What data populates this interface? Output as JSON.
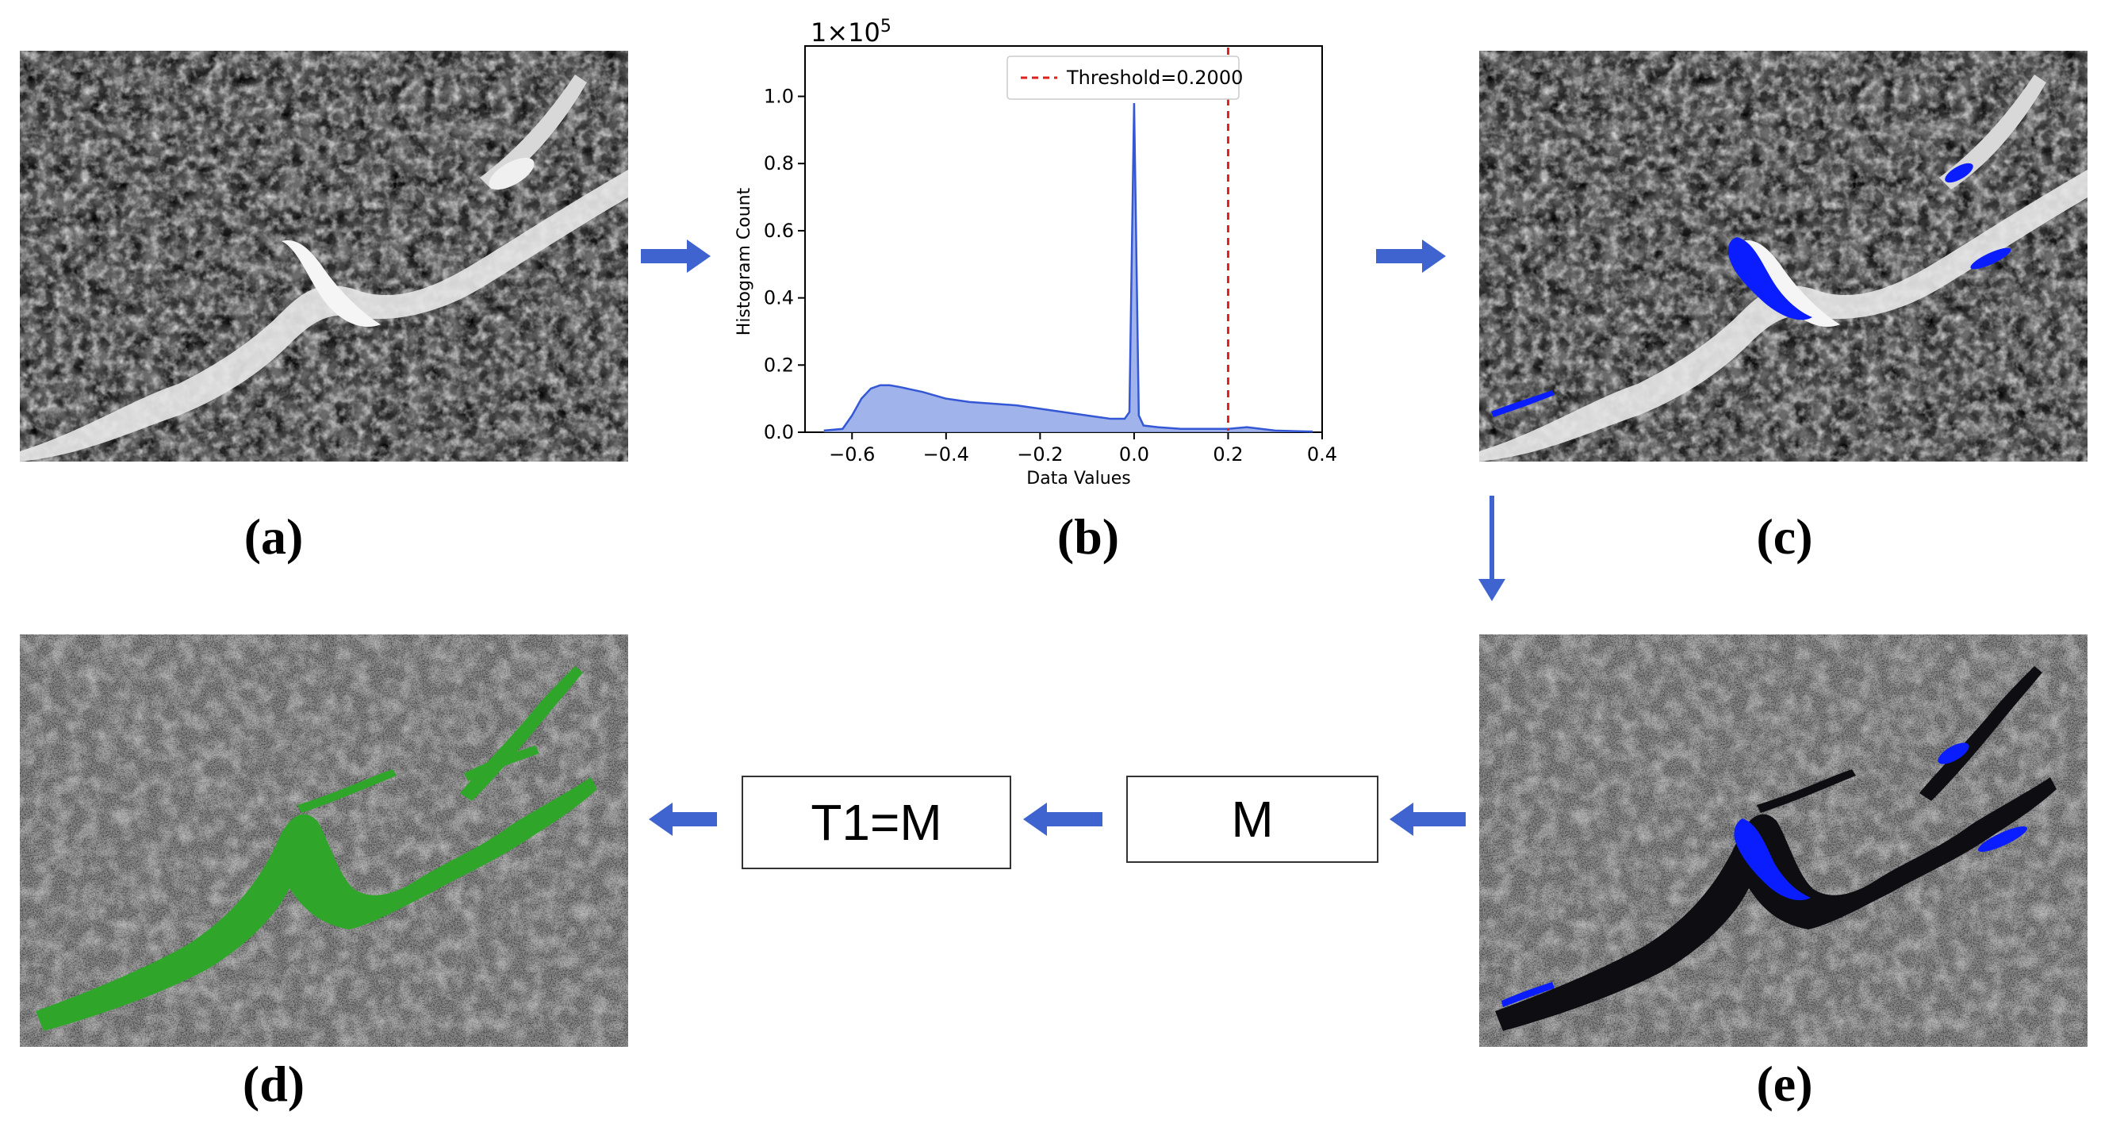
{
  "captions": {
    "a": "(a)",
    "b": "(b)",
    "c": "(c)",
    "d": "(d)",
    "e": "(e)"
  },
  "boxes": {
    "m": "M",
    "t1": "T1=M"
  },
  "colors": {
    "arrow": "#3f63cf",
    "mask_blue": "#0a1dff",
    "mask_green": "#2fa52a",
    "histogram_fill": "#8fa6e6",
    "histogram_line": "#3457d5",
    "threshold_line": "#e0201b"
  },
  "icons": [
    "arrow-right-icon",
    "arrow-down-icon",
    "arrow-left-icon"
  ],
  "chart_data": {
    "type": "area",
    "xlabel": "Data Values",
    "ylabel": "Histogram Count",
    "y_scale_label": "1×10",
    "y_scale_exponent": "5",
    "xlim": [
      -0.7,
      0.4
    ],
    "ylim": [
      0,
      1.15
    ],
    "xticks": [
      -0.6,
      -0.4,
      -0.2,
      0.0,
      0.2,
      0.4
    ],
    "xtick_labels": [
      "−0.6",
      "−0.4",
      "−0.2",
      "0.0",
      "0.2",
      "0.4"
    ],
    "yticks": [
      0.0,
      0.2,
      0.4,
      0.6,
      0.8,
      1.0
    ],
    "ytick_labels": [
      "0.0",
      "0.2",
      "0.4",
      "0.6",
      "0.8",
      "1.0"
    ],
    "x": [
      -0.66,
      -0.62,
      -0.6,
      -0.58,
      -0.56,
      -0.54,
      -0.52,
      -0.5,
      -0.45,
      -0.4,
      -0.35,
      -0.3,
      -0.25,
      -0.2,
      -0.15,
      -0.1,
      -0.05,
      -0.02,
      -0.01,
      0.0,
      0.01,
      0.02,
      0.05,
      0.1,
      0.15,
      0.2,
      0.24,
      0.3,
      0.35,
      0.38
    ],
    "y": [
      0.005,
      0.01,
      0.05,
      0.1,
      0.13,
      0.14,
      0.14,
      0.135,
      0.12,
      0.1,
      0.09,
      0.085,
      0.08,
      0.07,
      0.06,
      0.05,
      0.04,
      0.04,
      0.06,
      0.98,
      0.05,
      0.02,
      0.015,
      0.01,
      0.01,
      0.01,
      0.015,
      0.005,
      0.003,
      0.002
    ],
    "threshold": 0.2,
    "legend": {
      "label": "Threshold=0.2000",
      "position": "upper right"
    }
  }
}
